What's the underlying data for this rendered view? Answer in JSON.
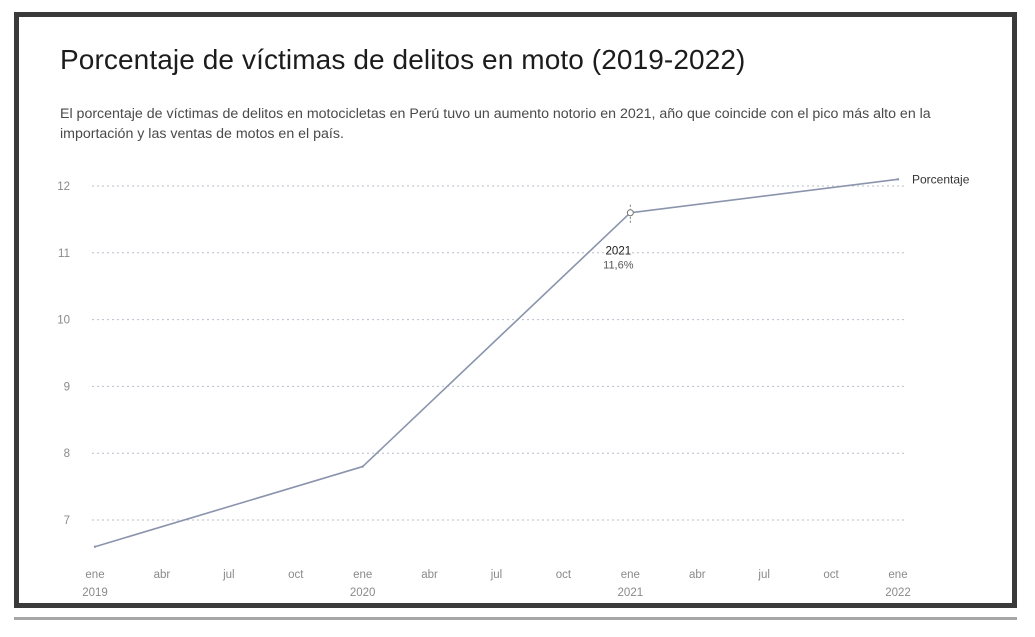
{
  "page": {
    "title": "Porcentaje de víctimas de delitos en moto (2019-2022)",
    "subtitle": "El porcentaje de víctimas de delitos en motocicletas en Perú tuvo un aumento notorio en 2021, año que coincide con el pico más alto en la importación y las ventas de motos en el país."
  },
  "colors": {
    "line": "#8a94ad",
    "grid": "#b9bec9",
    "text": "#1c1c1c"
  },
  "chart_data": {
    "type": "line",
    "title": "Porcentaje de víctimas de delitos en moto (2019-2022)",
    "xlabel": "",
    "ylabel": "",
    "ylim": [
      6.5,
      12.2
    ],
    "y_ticks": [
      "12",
      "11",
      "10",
      "9",
      "8",
      "7"
    ],
    "y_tick_values": [
      12,
      11,
      10,
      9,
      8,
      7
    ],
    "x_ticks": [
      {
        "month": "ene",
        "year": "2019",
        "t": 0
      },
      {
        "month": "abr",
        "year": "",
        "t": 3
      },
      {
        "month": "jul",
        "year": "",
        "t": 6
      },
      {
        "month": "oct",
        "year": "",
        "t": 9
      },
      {
        "month": "ene",
        "year": "2020",
        "t": 12
      },
      {
        "month": "abr",
        "year": "",
        "t": 15
      },
      {
        "month": "jul",
        "year": "",
        "t": 18
      },
      {
        "month": "oct",
        "year": "",
        "t": 21
      },
      {
        "month": "ene",
        "year": "2021",
        "t": 24
      },
      {
        "month": "abr",
        "year": "",
        "t": 27
      },
      {
        "month": "jul",
        "year": "",
        "t": 30
      },
      {
        "month": "oct",
        "year": "",
        "t": 33
      },
      {
        "month": "ene",
        "year": "2022",
        "t": 36
      }
    ],
    "grid": true,
    "series": [
      {
        "name": "Porcentaje",
        "x": [
          "ene 2019",
          "ene 2020",
          "ene 2021",
          "ene 2022"
        ],
        "t": [
          0,
          12,
          24,
          36
        ],
        "values": [
          6.6,
          7.8,
          11.6,
          12.1
        ]
      }
    ],
    "annotation": {
      "year": "2021",
      "value": "11,6%",
      "t": 24,
      "y": 11.6
    }
  }
}
